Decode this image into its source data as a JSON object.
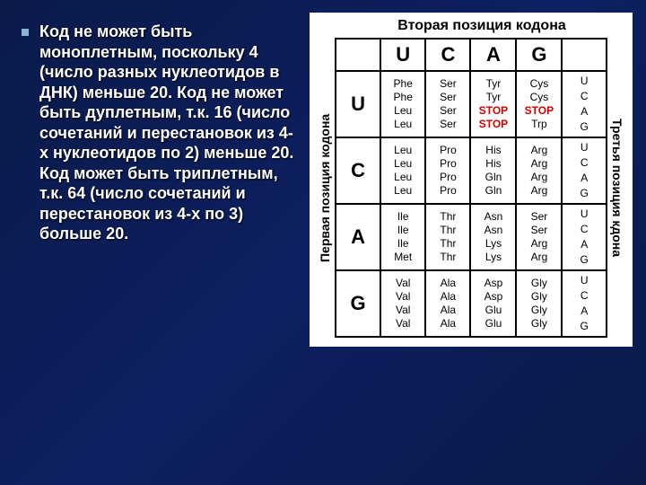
{
  "bullet_text": "Код не может быть моноплетным, поскольку 4 (число разных нуклеотидов в ДНК) меньше 20. Код не может быть дуплетным, т.к. 16 (число сочетаний и перестановок из 4-х нуклеотидов по 2) меньше 20. Код может быть триплетным, т.к. 64 (число сочетаний и перестановок из 4-х по 3) больше 20.",
  "codon_table": {
    "top_title": "Вторая позиция кодона",
    "left_title": "Первая позиция кодона",
    "right_title": "Третья позиция кдона",
    "col_headers": [
      "U",
      "C",
      "A",
      "G"
    ],
    "side_labels": [
      "U",
      "C",
      "A",
      "G"
    ],
    "rows": [
      {
        "hdr": "U",
        "cells": [
          [
            {
              "t": "Phe"
            },
            {
              "t": "Phe"
            },
            {
              "t": "Leu"
            },
            {
              "t": "Leu"
            }
          ],
          [
            {
              "t": "Ser"
            },
            {
              "t": "Ser"
            },
            {
              "t": "Ser"
            },
            {
              "t": "Ser"
            }
          ],
          [
            {
              "t": "Tyr"
            },
            {
              "t": "Tyr"
            },
            {
              "t": "STOP",
              "s": true
            },
            {
              "t": "STOP",
              "s": true
            }
          ],
          [
            {
              "t": "Cys"
            },
            {
              "t": "Cys"
            },
            {
              "t": "STOP",
              "s": true
            },
            {
              "t": "Trp"
            }
          ]
        ]
      },
      {
        "hdr": "C",
        "cells": [
          [
            {
              "t": "Leu"
            },
            {
              "t": "Leu"
            },
            {
              "t": "Leu"
            },
            {
              "t": "Leu"
            }
          ],
          [
            {
              "t": "Pro"
            },
            {
              "t": "Pro"
            },
            {
              "t": "Pro"
            },
            {
              "t": "Pro"
            }
          ],
          [
            {
              "t": "His"
            },
            {
              "t": "His"
            },
            {
              "t": "Gln"
            },
            {
              "t": "Gln"
            }
          ],
          [
            {
              "t": "Arg"
            },
            {
              "t": "Arg"
            },
            {
              "t": "Arg"
            },
            {
              "t": "Arg"
            }
          ]
        ]
      },
      {
        "hdr": "A",
        "cells": [
          [
            {
              "t": "Ile"
            },
            {
              "t": "Ile"
            },
            {
              "t": "Ile"
            },
            {
              "t": "Met"
            }
          ],
          [
            {
              "t": "Thr"
            },
            {
              "t": "Thr"
            },
            {
              "t": "Thr"
            },
            {
              "t": "Thr"
            }
          ],
          [
            {
              "t": "Asn"
            },
            {
              "t": "Asn"
            },
            {
              "t": "Lys"
            },
            {
              "t": "Lys"
            }
          ],
          [
            {
              "t": "Ser"
            },
            {
              "t": "Ser"
            },
            {
              "t": "Arg"
            },
            {
              "t": "Arg"
            }
          ]
        ]
      },
      {
        "hdr": "G",
        "cells": [
          [
            {
              "t": "Val"
            },
            {
              "t": "Val"
            },
            {
              "t": "Val"
            },
            {
              "t": "Val"
            }
          ],
          [
            {
              "t": "Ala"
            },
            {
              "t": "Ala"
            },
            {
              "t": "Ala"
            },
            {
              "t": "Ala"
            }
          ],
          [
            {
              "t": "Asp"
            },
            {
              "t": "Asp"
            },
            {
              "t": "Glu"
            },
            {
              "t": "Glu"
            }
          ],
          [
            {
              "t": "Gly"
            },
            {
              "t": "Gly"
            },
            {
              "t": "Gly"
            },
            {
              "t": "Gly"
            }
          ]
        ]
      }
    ]
  }
}
